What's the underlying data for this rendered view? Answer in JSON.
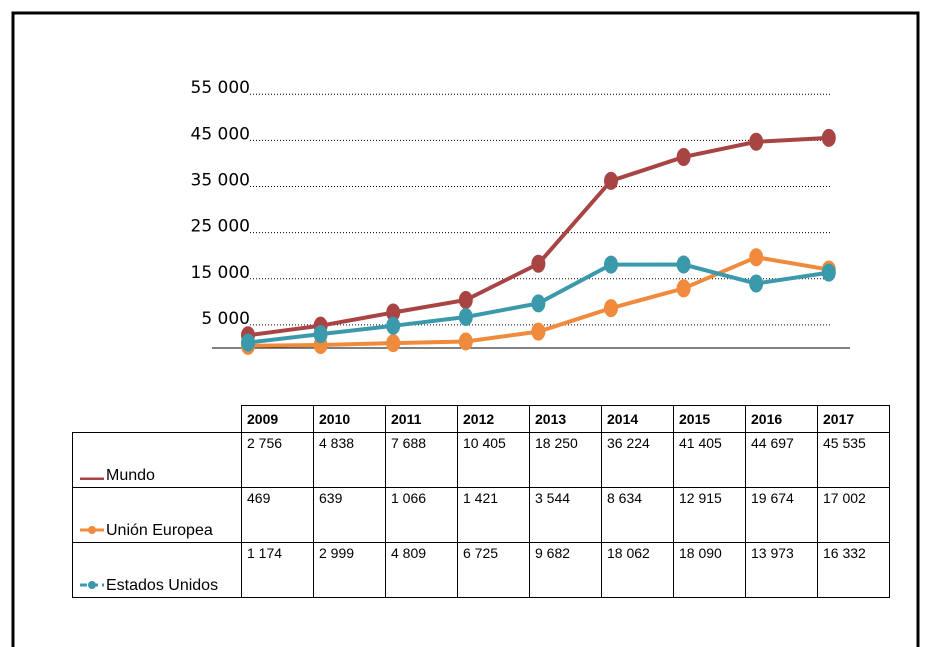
{
  "chart_data": {
    "type": "line",
    "categories": [
      "2009",
      "2010",
      "2011",
      "2012",
      "2013",
      "2014",
      "2015",
      "2016",
      "2017"
    ],
    "series": [
      {
        "name": "Mundo",
        "color": "#a84444",
        "values": [
          2756,
          4838,
          7688,
          10405,
          18250,
          36224,
          41405,
          44697,
          45535
        ],
        "value_labels": [
          "2 756",
          "4 838",
          "7 688",
          "10 405",
          "18 250",
          "36 224",
          "41 405",
          "44 697",
          "45 535"
        ]
      },
      {
        "name": "Unión Europea",
        "color": "#f08a3c",
        "values": [
          469,
          639,
          1066,
          1421,
          3544,
          8634,
          12915,
          19674,
          17002
        ],
        "value_labels": [
          "469",
          "639",
          "1 066",
          "1 421",
          "3 544",
          "8 634",
          "12 915",
          "19 674",
          "17 002"
        ]
      },
      {
        "name": "Estados Unidos",
        "color": "#3a9aab",
        "values": [
          1174,
          2999,
          4809,
          6725,
          9682,
          18062,
          18090,
          13973,
          16332
        ],
        "value_labels": [
          "1 174",
          "2 999",
          "4 809",
          "6 725",
          "9 682",
          "18 062",
          "18 090",
          "13 973",
          "16 332"
        ]
      }
    ],
    "ylim": [
      0,
      57000
    ],
    "yticks": [
      {
        "value": 5000,
        "label": "5 000"
      },
      {
        "value": 15000,
        "label": "15 000"
      },
      {
        "value": 25000,
        "label": "25 000"
      },
      {
        "value": 35000,
        "label": "35 000"
      },
      {
        "value": 45000,
        "label": "45 000"
      },
      {
        "value": 55000,
        "label": "55 000"
      }
    ],
    "grid": true
  }
}
